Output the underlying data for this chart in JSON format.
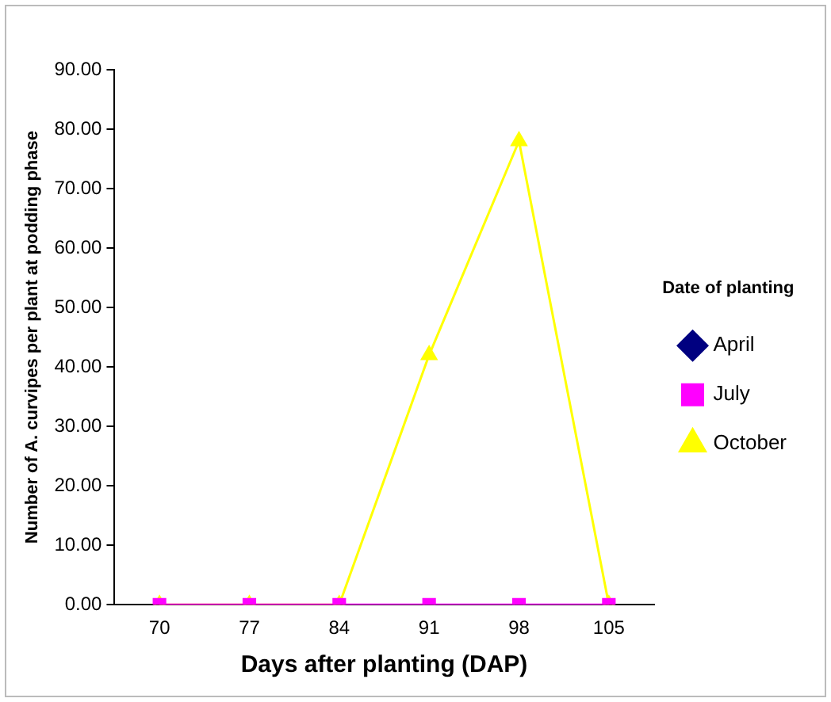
{
  "chart_data": {
    "type": "line",
    "xlabel": "Days after planting (DAP)",
    "ylabel": "Number of A. curvipes per plant at podding phase",
    "legend_title": "Date of planting",
    "categories": [
      "70",
      "77",
      "84",
      "91",
      "98",
      "105"
    ],
    "series": [
      {
        "name": "April",
        "color": "#000080",
        "marker": "diamond",
        "values": [
          null,
          null,
          null,
          null,
          null,
          null
        ]
      },
      {
        "name": "July",
        "color": "#ff00ff",
        "marker": "square",
        "values": [
          0,
          0,
          0,
          0,
          0,
          0
        ]
      },
      {
        "name": "October",
        "color": "#ffff00",
        "marker": "triangle",
        "values": [
          0,
          0,
          0,
          42,
          78,
          0
        ]
      }
    ],
    "ylim": [
      0,
      90
    ],
    "yticks": [
      {
        "value": 0,
        "label": "0.00"
      },
      {
        "value": 10,
        "label": "10.00"
      },
      {
        "value": 20,
        "label": "20.00"
      },
      {
        "value": 30,
        "label": "30.00"
      },
      {
        "value": 40,
        "label": "40.00"
      },
      {
        "value": 50,
        "label": "50.00"
      },
      {
        "value": 60,
        "label": "60.00"
      },
      {
        "value": 70,
        "label": "70.00"
      },
      {
        "value": 80,
        "label": "80.00"
      },
      {
        "value": 90,
        "label": "90.00"
      }
    ],
    "grid": false,
    "legend": "right"
  }
}
